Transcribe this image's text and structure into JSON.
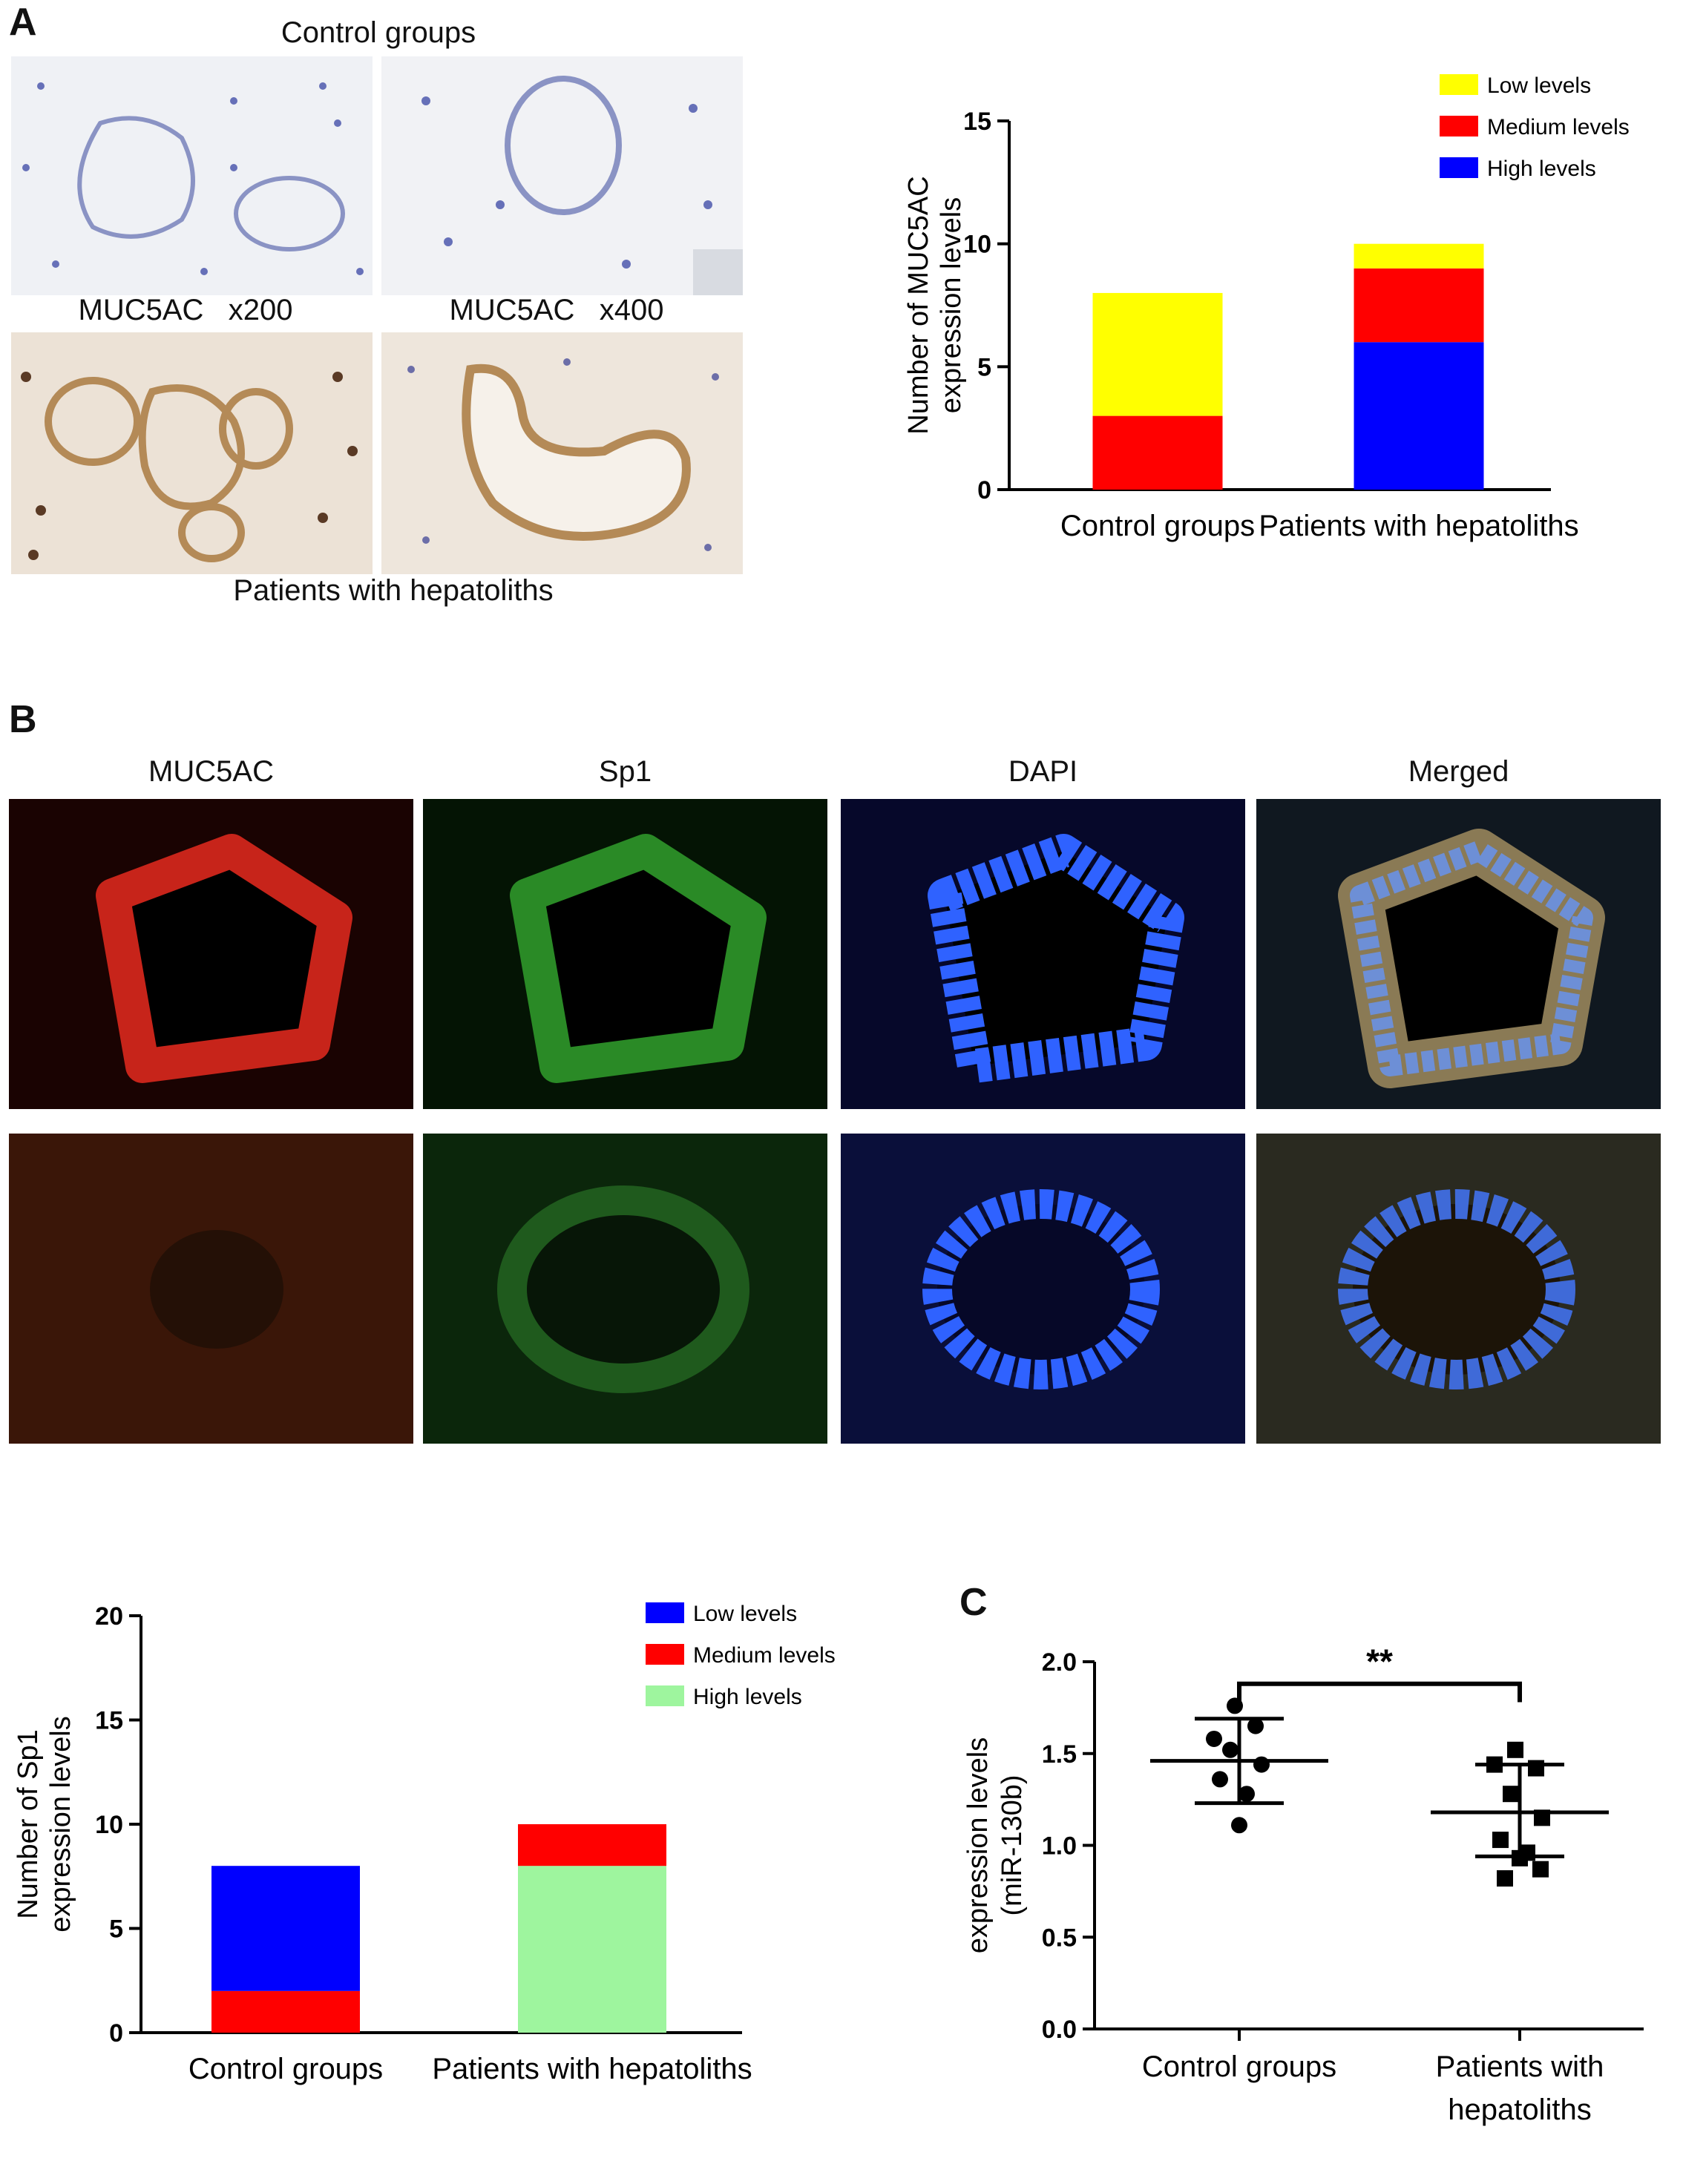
{
  "panel_a": {
    "letter": "A",
    "top_caption": "Control groups",
    "mag_left": "MUC5AC   x200",
    "mag_right": "MUC5AC   x400",
    "bottom_caption": "Patients with hepatoliths",
    "colors": {
      "control_stain": "#e9ecf2",
      "patient_stain": "#e9dccf"
    }
  },
  "panel_b": {
    "letter": "B",
    "channels": [
      "MUC5AC",
      "Sp1",
      "DAPI",
      "Merged"
    ],
    "colors": {
      "muc5ac": "#d8261b",
      "sp1": "#2ea02c",
      "dapi": "#3b6cff",
      "merged": "#8c7a5a"
    }
  },
  "panel_c": {
    "letter": "C"
  },
  "chart_data": [
    {
      "id": "muc5ac_levels",
      "type": "bar",
      "stacked": true,
      "categories": [
        "Control groups",
        "Patients with hepatoliths"
      ],
      "series": [
        {
          "name": "High levels",
          "color": "#0000ff",
          "values": [
            0,
            6
          ]
        },
        {
          "name": "Medium levels",
          "color": "#ff0000",
          "values": [
            3,
            3
          ]
        },
        {
          "name": "Low levels",
          "color": "#ffff00",
          "values": [
            5,
            1
          ]
        }
      ],
      "legend_order": [
        "Low levels",
        "Medium levels",
        "High levels"
      ],
      "ylabel": [
        "Number of MUC5AC",
        "expression levels"
      ],
      "ylim": [
        0,
        15
      ],
      "yticks": [
        0,
        5,
        10,
        15
      ],
      "legend_placement": "top-right",
      "grid": false
    },
    {
      "id": "sp1_levels",
      "type": "bar",
      "stacked": true,
      "categories": [
        "Control groups",
        "Patients with hepatoliths"
      ],
      "series": [
        {
          "name": "High levels",
          "color": "#9ef59e",
          "values": [
            0,
            8
          ]
        },
        {
          "name": "Medium levels",
          "color": "#ff0000",
          "values": [
            2,
            2
          ]
        },
        {
          "name": "Low levels",
          "color": "#0000ff",
          "values": [
            6,
            0
          ]
        }
      ],
      "legend_order": [
        "Low levels",
        "Medium levels",
        "High levels"
      ],
      "ylabel": [
        "Number of Sp1",
        "expression levels"
      ],
      "ylim": [
        0,
        20
      ],
      "yticks": [
        0,
        5,
        10,
        15,
        20
      ],
      "legend_placement": "top-right",
      "grid": false
    },
    {
      "id": "mir130b",
      "type": "scatter",
      "categories": [
        "Control groups",
        "Patients with\nhepatoliths"
      ],
      "series": [
        {
          "name": "Control groups",
          "marker": "circle",
          "mean": 1.46,
          "sd_low": 1.23,
          "sd_high": 1.69,
          "points": [
            1.76,
            1.58,
            1.65,
            1.52,
            1.44,
            1.36,
            1.28,
            1.11
          ]
        },
        {
          "name": "Patients with hepatoliths",
          "marker": "square",
          "mean": 1.18,
          "sd_low": 0.94,
          "sd_high": 1.44,
          "points": [
            1.52,
            1.44,
            1.42,
            1.28,
            1.15,
            1.03,
            0.96,
            0.93,
            0.87,
            0.82
          ]
        }
      ],
      "ylabel": [
        "expression levels",
        "(miR-130b)"
      ],
      "ylim": [
        0,
        2.0
      ],
      "yticks": [
        "0.0",
        "0.5",
        "1.0",
        "1.5",
        "2.0"
      ],
      "significance": "**",
      "grid": false
    }
  ]
}
